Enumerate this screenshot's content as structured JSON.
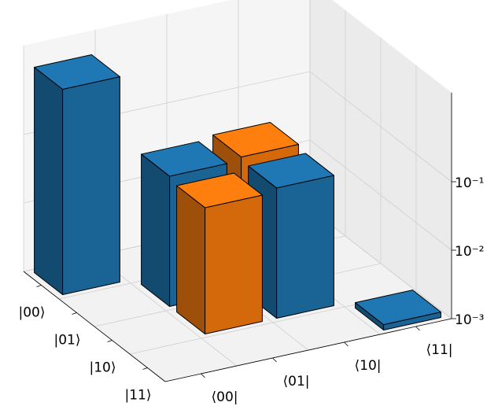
{
  "chart_data": {
    "type": "bar3d",
    "row_labels": [
      "|00⟩",
      "|01⟩",
      "|10⟩",
      "|11⟩"
    ],
    "col_labels": [
      "⟨00|",
      "⟨01|",
      "⟨10|",
      "⟨11|"
    ],
    "values": [
      [
        1,
        null,
        null,
        null
      ],
      [
        null,
        0.08,
        0.09,
        null
      ],
      [
        null,
        0.07,
        0.08,
        null
      ],
      [
        null,
        null,
        null,
        0.0012
      ]
    ],
    "colors": [
      [
        "#1f77b4",
        null,
        null,
        null
      ],
      [
        null,
        "#1f77b4",
        "#ff7f0e",
        null
      ],
      [
        null,
        "#ff7f0e",
        "#1f77b4",
        null
      ],
      [
        null,
        null,
        null,
        "#1f77b4"
      ]
    ],
    "zlim": [
      0.001,
      2
    ],
    "log_scale": true,
    "zticks": [
      {
        "value": 0.001,
        "label": "10⁻³"
      },
      {
        "value": 0.01,
        "label": "10⁻²"
      },
      {
        "value": 0.1,
        "label": "10⁻¹"
      }
    ],
    "grid": true
  }
}
